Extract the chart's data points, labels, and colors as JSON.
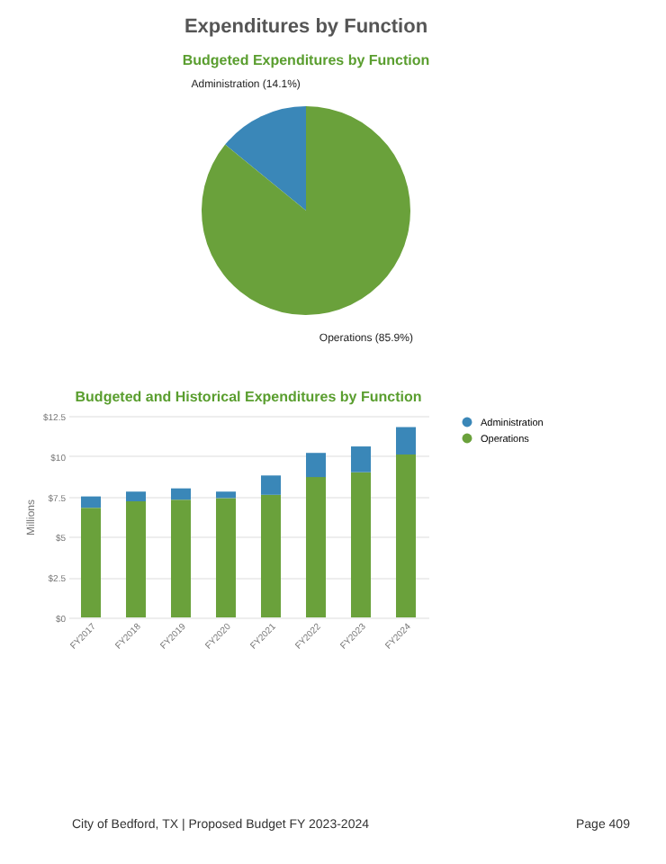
{
  "chart_data": [
    {
      "type": "pie",
      "title": "Expenditures by Function",
      "subtitle": "Budgeted Expenditures by Function",
      "categories": [
        "Administration",
        "Operations"
      ],
      "values": [
        14.1,
        85.9
      ],
      "colors": [
        "#3a87b8",
        "#6aa13b"
      ],
      "value_labels": [
        "(14.1%)",
        "(85.9%)"
      ]
    },
    {
      "type": "bar",
      "title": "Budgeted and Historical Expenditures by Function",
      "ylabel": "Millions",
      "categories": [
        "FY2017",
        "FY2018",
        "FY2019",
        "FY2020",
        "FY2021",
        "FY2022",
        "FY2023",
        "FY2024"
      ],
      "stacked": true,
      "series": [
        {
          "name": "Operations",
          "color": "#6aa13b",
          "values": [
            6.8,
            7.2,
            7.3,
            7.4,
            7.6,
            8.7,
            9.0,
            10.1
          ]
        },
        {
          "name": "Administration",
          "color": "#3a87b8",
          "values": [
            0.7,
            0.6,
            0.7,
            0.4,
            1.2,
            1.5,
            1.6,
            1.7
          ]
        }
      ],
      "ylim": [
        0,
        12.5
      ],
      "yticks": [
        {
          "value": 0,
          "label": "$0"
        },
        {
          "value": 2.5,
          "label": "$2.5"
        },
        {
          "value": 5,
          "label": "$5"
        },
        {
          "value": 7.5,
          "label": "$7.5"
        },
        {
          "value": 10,
          "label": "$10"
        },
        {
          "value": 12.5,
          "label": "$12.5"
        }
      ],
      "grid": "y",
      "legend": "right",
      "annotations": [
        "City of Bedford, TX | Proposed Budget FY 2023-2024",
        "Page 409"
      ]
    }
  ]
}
